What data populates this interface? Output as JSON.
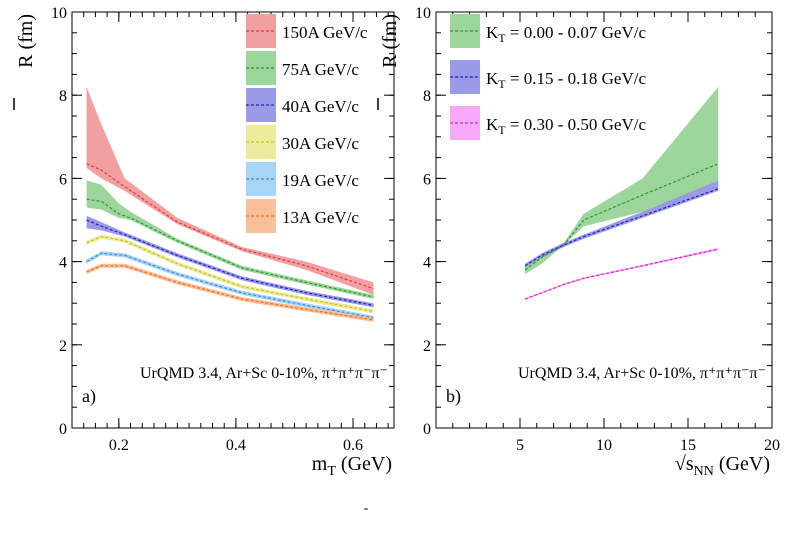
{
  "chart_data": [
    {
      "type": "area",
      "panel_label": "a)",
      "ylabel": "R (fm)",
      "xlabel": "m",
      "xlabel_sub": "T",
      "xlabel_unit": " (GeV)",
      "annotation": "UrQMD 3.4, Ar+Sc 0-10%, π⁺π⁺π⁻π⁻",
      "xlim": [
        0.12,
        0.67
      ],
      "ylim": [
        0,
        10
      ],
      "xticks": [
        0.2,
        0.4,
        0.6
      ],
      "xtick_labels": [
        "0.2",
        "0.4",
        "0.6"
      ],
      "yticks": [
        0,
        2,
        4,
        6,
        8,
        10
      ],
      "ytick_labels": [
        "0",
        "2",
        "4",
        "6",
        "8",
        "10"
      ],
      "grid": false,
      "legend_position": "top-right",
      "series": [
        {
          "name": "150A GeV/c",
          "color": "#e03c3c",
          "fill": "#f0a0a0",
          "x": [
            0.145,
            0.17,
            0.21,
            0.3,
            0.41,
            0.52,
            0.635
          ],
          "y": [
            6.35,
            6.2,
            5.8,
            4.95,
            4.3,
            3.9,
            3.35
          ],
          "ylow": [
            6.25,
            6.0,
            5.7,
            4.9,
            4.25,
            3.8,
            3.2
          ],
          "yhigh": [
            8.2,
            7.3,
            6.0,
            5.05,
            4.35,
            4.0,
            3.5
          ]
        },
        {
          "name": "75A GeV/c",
          "color": "#2a9a2a",
          "fill": "#9cd69c",
          "x": [
            0.145,
            0.17,
            0.2,
            0.22,
            0.3,
            0.41,
            0.52,
            0.635
          ],
          "y": [
            5.5,
            5.45,
            5.15,
            5.05,
            4.5,
            3.85,
            3.5,
            3.15
          ],
          "ylow": [
            5.3,
            5.25,
            5.05,
            5.0,
            4.45,
            3.8,
            3.45,
            3.1
          ],
          "yhigh": [
            5.95,
            5.85,
            5.4,
            5.2,
            4.55,
            3.9,
            3.55,
            3.2
          ]
        },
        {
          "name": "40A GeV/c",
          "color": "#2020c0",
          "fill": "#9a9ae6",
          "x": [
            0.145,
            0.17,
            0.21,
            0.3,
            0.41,
            0.52,
            0.635
          ],
          "y": [
            5.0,
            4.85,
            4.65,
            4.15,
            3.6,
            3.25,
            2.95
          ],
          "ylow": [
            4.8,
            4.75,
            4.6,
            4.1,
            3.55,
            3.2,
            2.9
          ],
          "yhigh": [
            5.1,
            4.95,
            4.7,
            4.2,
            3.65,
            3.3,
            3.0
          ]
        },
        {
          "name": "30A GeV/c",
          "color": "#c8c020",
          "fill": "#ecec9c",
          "x": [
            0.145,
            0.17,
            0.21,
            0.3,
            0.41,
            0.52,
            0.635
          ],
          "y": [
            4.45,
            4.6,
            4.5,
            3.95,
            3.4,
            3.1,
            2.8
          ],
          "ylow": [
            4.4,
            4.55,
            4.45,
            3.9,
            3.35,
            3.05,
            2.75
          ],
          "yhigh": [
            4.5,
            4.65,
            4.55,
            4.0,
            3.45,
            3.15,
            2.85
          ]
        },
        {
          "name": "19A GeV/c",
          "color": "#3c8ce0",
          "fill": "#a8d4f6",
          "x": [
            0.145,
            0.17,
            0.21,
            0.3,
            0.41,
            0.52,
            0.635
          ],
          "y": [
            4.0,
            4.2,
            4.15,
            3.7,
            3.25,
            2.95,
            2.65
          ],
          "ylow": [
            3.95,
            4.15,
            4.1,
            3.65,
            3.2,
            2.9,
            2.6
          ],
          "yhigh": [
            4.05,
            4.25,
            4.2,
            3.75,
            3.3,
            3.0,
            2.7
          ]
        },
        {
          "name": "13A GeV/c",
          "color": "#f07020",
          "fill": "#f8c098",
          "x": [
            0.145,
            0.17,
            0.21,
            0.3,
            0.41,
            0.52,
            0.635
          ],
          "y": [
            3.75,
            3.9,
            3.9,
            3.5,
            3.1,
            2.85,
            2.6
          ],
          "ylow": [
            3.7,
            3.85,
            3.85,
            3.45,
            3.05,
            2.8,
            2.55
          ],
          "yhigh": [
            3.8,
            3.95,
            3.95,
            3.55,
            3.15,
            2.9,
            2.65
          ]
        }
      ]
    },
    {
      "type": "area",
      "panel_label": "b)",
      "ylabel": "R (fm)",
      "xlabel": "√s",
      "xlabel_sub": "NN",
      "xlabel_unit": " (GeV)",
      "annotation": "UrQMD 3.4, Ar+Sc 0-10%, π⁺π⁺π⁻π⁻",
      "xlim": [
        0,
        20
      ],
      "ylim": [
        0,
        10
      ],
      "xticks": [
        5,
        10,
        15,
        20
      ],
      "xtick_labels": [
        "5",
        "10",
        "15",
        "20"
      ],
      "yticks": [
        0,
        2,
        4,
        6,
        8,
        10
      ],
      "ytick_labels": [
        "0",
        "2",
        "4",
        "6",
        "8",
        "10"
      ],
      "grid": false,
      "legend_position": "top-left",
      "series": [
        {
          "name": "K_T = 0.00 - 0.07 GeV/c",
          "label_main": "K",
          "label_sub": "T",
          "label_rest": " = 0.00 - 0.07 GeV/c",
          "color": "#2a9a2a",
          "fill": "#9cd69c",
          "x": [
            5.3,
            6.3,
            7.6,
            8.8,
            12.3,
            16.8
          ],
          "y": [
            3.8,
            4.1,
            4.4,
            5.0,
            5.6,
            6.35
          ],
          "ylow": [
            3.7,
            3.95,
            4.4,
            4.85,
            5.2,
            5.8
          ],
          "yhigh": [
            3.85,
            4.2,
            4.45,
            5.15,
            6.0,
            8.2
          ]
        },
        {
          "name": "K_T = 0.15 - 0.18 GeV/c",
          "label_main": "K",
          "label_sub": "T",
          "label_rest": " = 0.15 - 0.18 GeV/c",
          "color": "#2020c0",
          "fill": "#9a9ae6",
          "x": [
            5.3,
            6.3,
            7.6,
            8.8,
            12.3,
            16.8
          ],
          "y": [
            3.9,
            4.15,
            4.4,
            4.6,
            5.1,
            5.75
          ],
          "ylow": [
            3.85,
            4.1,
            4.35,
            4.55,
            5.05,
            5.7
          ],
          "yhigh": [
            3.95,
            4.2,
            4.45,
            4.65,
            5.2,
            5.95
          ]
        },
        {
          "name": "K_T = 0.30 - 0.50 GeV/c",
          "label_main": "K",
          "label_sub": "T",
          "label_rest": " = 0.30 - 0.50 GeV/c",
          "color": "#e020e0",
          "fill": "#f8a8f8",
          "x": [
            5.3,
            6.3,
            7.6,
            8.8,
            12.3,
            16.8
          ],
          "y": [
            3.1,
            3.25,
            3.45,
            3.6,
            3.9,
            4.3
          ],
          "ylow": [
            3.08,
            3.23,
            3.43,
            3.58,
            3.88,
            4.27
          ],
          "yhigh": [
            3.12,
            3.27,
            3.47,
            3.62,
            3.92,
            4.33
          ]
        }
      ]
    }
  ],
  "footer_mark": "-"
}
